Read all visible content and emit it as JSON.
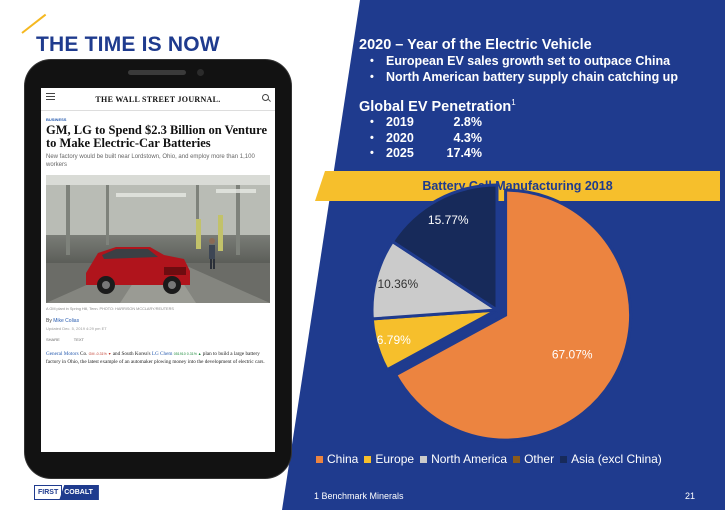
{
  "slide": {
    "title": "THE TIME IS NOW",
    "page_number": "21",
    "footnote": "1  Benchmark Minerals",
    "logo": {
      "part1": "FIRST",
      "part2": "COBALT"
    }
  },
  "ev_year": {
    "title": "2020 – Year of the Electric Vehicle",
    "bullets": [
      "European EV sales growth set to outpace China",
      "North American battery supply chain catching up"
    ]
  },
  "penetration": {
    "title": "Global EV Penetration",
    "footnote_marker": "1",
    "rows": [
      {
        "year": "2019",
        "value": "2.8%"
      },
      {
        "year": "2020",
        "value": "4.3%"
      },
      {
        "year": "2025",
        "value": "17.4%"
      }
    ]
  },
  "article": {
    "masthead": "THE WALL STREET JOURNAL.",
    "section": "BUSINESS",
    "headline": "GM, LG to Spend $2.3 Billion on Venture to Make Electric-Car Batteries",
    "dek": "New factory would be built near Lordstown, Ohio, and employ more than 1,100 workers",
    "caption": "A GM plant in Spring Hill, Tenn. PHOTO: HARRISON MCCLARY/REUTERS",
    "byline_prefix": "By",
    "author": "Mike Colias",
    "updated": "Updated Dec. 5, 2019 4:29 pm ET",
    "share": "SHARE",
    "text_size": "TEXT",
    "body_co1": "General Motors",
    "body_co1_suffix": " Co.",
    "body_tk1": "GM -0.31% ▼",
    "body_mid": " and South Korea's ",
    "body_co2": "LG Chem",
    "body_tk2": "051910 0.31% ▲",
    "body_rest": " plan to build a large battery factory in Ohio, the latest example of an automaker plowing money into the development of electric cars."
  },
  "chart_data": {
    "type": "pie",
    "title": "Battery Cell Manufacturing 2018",
    "legend_position": "bottom",
    "slices": [
      {
        "label": "China",
        "value": 67.07,
        "display": "67.07%",
        "color": "#ec8440"
      },
      {
        "label": "Europe",
        "value": 6.79,
        "display": "6.79%",
        "color": "#f6bf2c"
      },
      {
        "label": "North America",
        "value": 10.36,
        "display": "10.36%",
        "color": "#cbcbcb"
      },
      {
        "label": "Other",
        "value": 0.0,
        "display": "",
        "color": "#8a5a1a"
      },
      {
        "label": "Asia (excl China)",
        "value": 15.77,
        "display": "15.77%",
        "color": "#172a5a"
      }
    ]
  },
  "colors": {
    "brand_blue": "#1f3b8e",
    "accent_yellow": "#f6bf2c"
  }
}
